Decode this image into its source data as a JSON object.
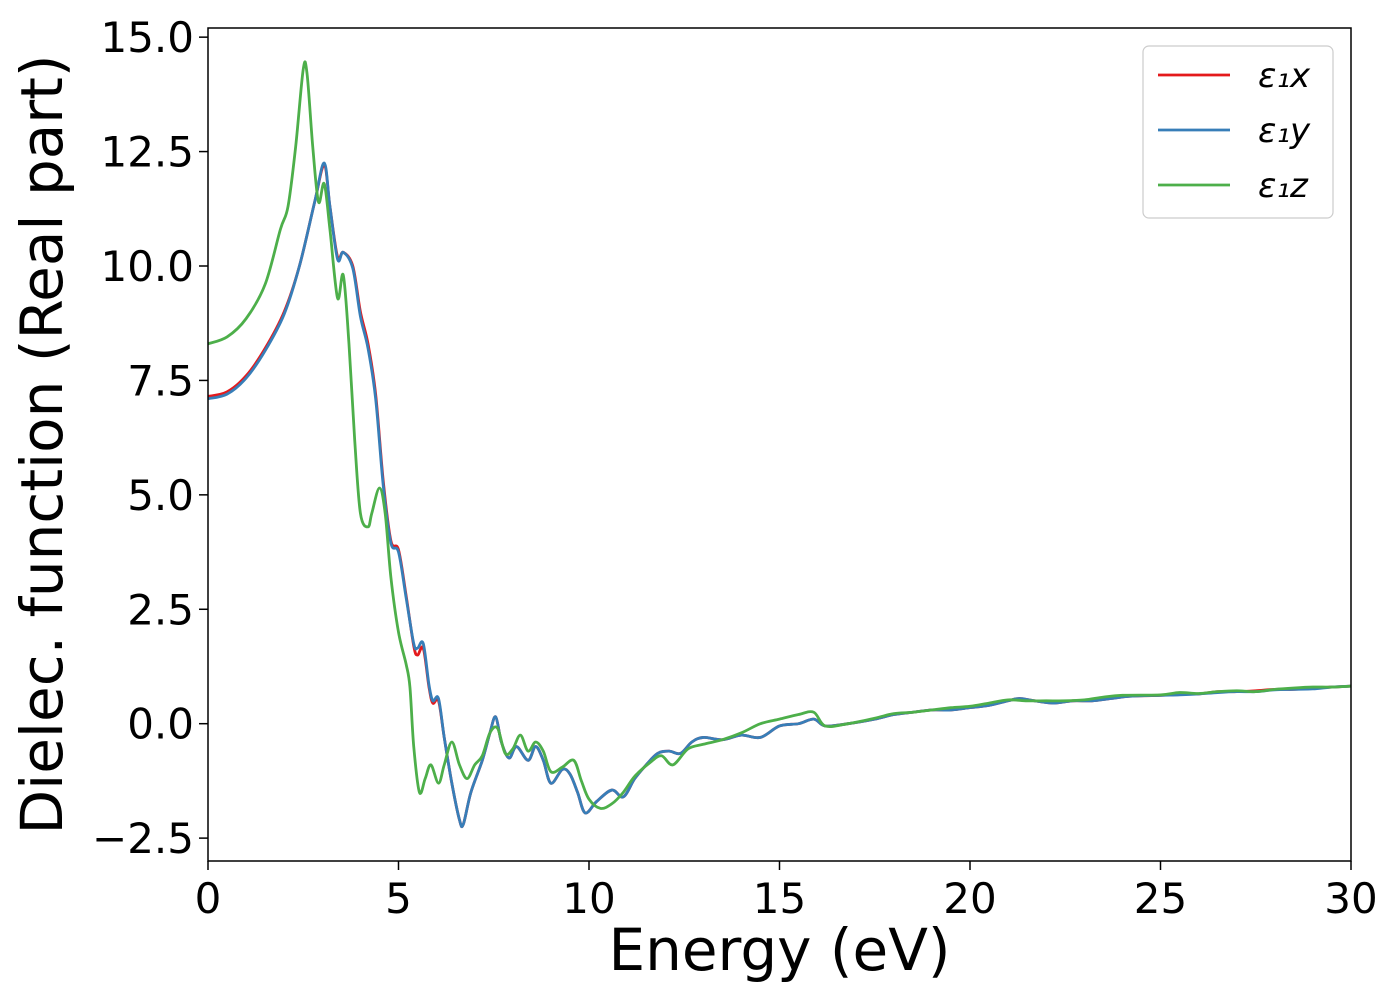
{
  "chart_data": {
    "type": "line",
    "xlabel": "Energy (eV)",
    "ylabel": "Dielec. function (Real part)",
    "xlim": [
      0,
      30
    ],
    "ylim": [
      -3.0,
      15.2
    ],
    "xticks": [
      0,
      5,
      10,
      15,
      20,
      25,
      30
    ],
    "xtick_labels": [
      "0",
      "5",
      "10",
      "15",
      "20",
      "25",
      "30"
    ],
    "yticks": [
      -2.5,
      0.0,
      2.5,
      5.0,
      7.5,
      10.0,
      12.5,
      15.0
    ],
    "ytick_labels": [
      "−2.5",
      "0.0",
      "2.5",
      "5.0",
      "7.5",
      "10.0",
      "12.5",
      "15.0"
    ],
    "grid": false,
    "legend_position": "top-right",
    "series": [
      {
        "name": "ε₁x",
        "color": "#e41a1c",
        "points": [
          [
            0,
            7.15
          ],
          [
            0.5,
            7.25
          ],
          [
            1.0,
            7.6
          ],
          [
            1.5,
            8.2
          ],
          [
            2.0,
            9.0
          ],
          [
            2.4,
            10.0
          ],
          [
            2.8,
            11.4
          ],
          [
            3.05,
            12.2
          ],
          [
            3.2,
            11.3
          ],
          [
            3.4,
            10.2
          ],
          [
            3.55,
            10.3
          ],
          [
            3.8,
            10.0
          ],
          [
            4.0,
            9.0
          ],
          [
            4.2,
            8.3
          ],
          [
            4.4,
            7.2
          ],
          [
            4.6,
            5.3
          ],
          [
            4.8,
            4.0
          ],
          [
            5.0,
            3.8
          ],
          [
            5.2,
            2.8
          ],
          [
            5.4,
            1.7
          ],
          [
            5.5,
            1.5
          ],
          [
            5.65,
            1.65
          ],
          [
            5.8,
            0.8
          ],
          [
            5.9,
            0.45
          ],
          [
            6.05,
            0.5
          ],
          [
            6.2,
            -0.3
          ],
          [
            6.4,
            -1.3
          ],
          [
            6.6,
            -2.1
          ],
          [
            6.7,
            -2.2
          ],
          [
            6.9,
            -1.5
          ],
          [
            7.2,
            -0.8
          ],
          [
            7.4,
            -0.2
          ],
          [
            7.55,
            0.15
          ],
          [
            7.7,
            -0.4
          ],
          [
            7.9,
            -0.75
          ],
          [
            8.1,
            -0.5
          ],
          [
            8.4,
            -0.8
          ],
          [
            8.6,
            -0.5
          ],
          [
            8.8,
            -0.8
          ],
          [
            9.0,
            -1.3
          ],
          [
            9.3,
            -1.0
          ],
          [
            9.5,
            -1.1
          ],
          [
            9.7,
            -1.5
          ],
          [
            9.9,
            -1.95
          ],
          [
            10.2,
            -1.7
          ],
          [
            10.6,
            -1.45
          ],
          [
            10.9,
            -1.6
          ],
          [
            11.2,
            -1.2
          ],
          [
            11.5,
            -0.9
          ],
          [
            11.8,
            -0.65
          ],
          [
            12.1,
            -0.6
          ],
          [
            12.4,
            -0.65
          ],
          [
            12.7,
            -0.4
          ],
          [
            13.0,
            -0.3
          ],
          [
            13.5,
            -0.35
          ],
          [
            14.0,
            -0.25
          ],
          [
            14.5,
            -0.3
          ],
          [
            15.0,
            -0.05
          ],
          [
            15.5,
            0.0
          ],
          [
            15.9,
            0.1
          ],
          [
            16.2,
            -0.05
          ],
          [
            16.8,
            0.0
          ],
          [
            17.5,
            0.1
          ],
          [
            18.0,
            0.2
          ],
          [
            18.5,
            0.25
          ],
          [
            19.0,
            0.3
          ],
          [
            19.5,
            0.3
          ],
          [
            20.0,
            0.35
          ],
          [
            20.5,
            0.4
          ],
          [
            21.0,
            0.5
          ],
          [
            21.3,
            0.55
          ],
          [
            21.7,
            0.5
          ],
          [
            22.2,
            0.45
          ],
          [
            22.7,
            0.5
          ],
          [
            23.2,
            0.5
          ],
          [
            23.7,
            0.55
          ],
          [
            24.2,
            0.6
          ],
          [
            25.0,
            0.62
          ],
          [
            25.5,
            0.65
          ],
          [
            26.0,
            0.65
          ],
          [
            26.5,
            0.7
          ],
          [
            27.0,
            0.7
          ],
          [
            27.5,
            0.72
          ],
          [
            28.0,
            0.75
          ],
          [
            28.5,
            0.75
          ],
          [
            29.0,
            0.78
          ],
          [
            29.5,
            0.8
          ],
          [
            30,
            0.82
          ]
        ]
      },
      {
        "name": "ε₁y",
        "color": "#377eb8",
        "points": [
          [
            0,
            7.1
          ],
          [
            0.5,
            7.2
          ],
          [
            1.0,
            7.55
          ],
          [
            1.5,
            8.15
          ],
          [
            2.0,
            8.95
          ],
          [
            2.4,
            10.0
          ],
          [
            2.8,
            11.4
          ],
          [
            3.05,
            12.25
          ],
          [
            3.2,
            11.3
          ],
          [
            3.4,
            10.15
          ],
          [
            3.55,
            10.3
          ],
          [
            3.8,
            9.95
          ],
          [
            4.0,
            8.9
          ],
          [
            4.2,
            8.2
          ],
          [
            4.4,
            7.1
          ],
          [
            4.6,
            5.2
          ],
          [
            4.8,
            3.95
          ],
          [
            5.0,
            3.75
          ],
          [
            5.2,
            2.75
          ],
          [
            5.4,
            1.75
          ],
          [
            5.5,
            1.65
          ],
          [
            5.65,
            1.75
          ],
          [
            5.8,
            0.85
          ],
          [
            5.9,
            0.5
          ],
          [
            6.05,
            0.55
          ],
          [
            6.2,
            -0.3
          ],
          [
            6.4,
            -1.3
          ],
          [
            6.6,
            -2.1
          ],
          [
            6.7,
            -2.2
          ],
          [
            6.9,
            -1.5
          ],
          [
            7.2,
            -0.8
          ],
          [
            7.4,
            -0.2
          ],
          [
            7.55,
            0.15
          ],
          [
            7.7,
            -0.4
          ],
          [
            7.9,
            -0.75
          ],
          [
            8.1,
            -0.5
          ],
          [
            8.4,
            -0.8
          ],
          [
            8.6,
            -0.5
          ],
          [
            8.8,
            -0.8
          ],
          [
            9.0,
            -1.3
          ],
          [
            9.3,
            -1.0
          ],
          [
            9.5,
            -1.1
          ],
          [
            9.7,
            -1.5
          ],
          [
            9.9,
            -1.95
          ],
          [
            10.2,
            -1.7
          ],
          [
            10.6,
            -1.45
          ],
          [
            10.9,
            -1.6
          ],
          [
            11.2,
            -1.2
          ],
          [
            11.5,
            -0.9
          ],
          [
            11.8,
            -0.65
          ],
          [
            12.1,
            -0.6
          ],
          [
            12.4,
            -0.65
          ],
          [
            12.7,
            -0.4
          ],
          [
            13.0,
            -0.3
          ],
          [
            13.5,
            -0.35
          ],
          [
            14.0,
            -0.25
          ],
          [
            14.5,
            -0.3
          ],
          [
            15.0,
            -0.05
          ],
          [
            15.5,
            0.0
          ],
          [
            15.9,
            0.1
          ],
          [
            16.2,
            -0.05
          ],
          [
            16.8,
            0.0
          ],
          [
            17.5,
            0.1
          ],
          [
            18.0,
            0.2
          ],
          [
            18.5,
            0.25
          ],
          [
            19.0,
            0.3
          ],
          [
            19.5,
            0.3
          ],
          [
            20.0,
            0.35
          ],
          [
            20.5,
            0.4
          ],
          [
            21.0,
            0.5
          ],
          [
            21.3,
            0.55
          ],
          [
            21.7,
            0.5
          ],
          [
            22.2,
            0.45
          ],
          [
            22.7,
            0.5
          ],
          [
            23.2,
            0.5
          ],
          [
            23.7,
            0.55
          ],
          [
            24.2,
            0.6
          ],
          [
            25.0,
            0.62
          ],
          [
            25.5,
            0.63
          ],
          [
            26.0,
            0.65
          ],
          [
            26.5,
            0.68
          ],
          [
            27.0,
            0.7
          ],
          [
            27.5,
            0.7
          ],
          [
            28.0,
            0.74
          ],
          [
            28.5,
            0.75
          ],
          [
            29.0,
            0.76
          ],
          [
            29.5,
            0.8
          ],
          [
            30,
            0.82
          ]
        ]
      },
      {
        "name": "ε₁z",
        "color": "#4daf4a",
        "points": [
          [
            0,
            8.3
          ],
          [
            0.5,
            8.45
          ],
          [
            1.0,
            8.85
          ],
          [
            1.5,
            9.6
          ],
          [
            1.9,
            10.8
          ],
          [
            2.1,
            11.3
          ],
          [
            2.3,
            12.6
          ],
          [
            2.5,
            14.3
          ],
          [
            2.6,
            14.2
          ],
          [
            2.75,
            12.6
          ],
          [
            2.9,
            11.4
          ],
          [
            3.05,
            11.8
          ],
          [
            3.2,
            10.8
          ],
          [
            3.4,
            9.3
          ],
          [
            3.55,
            9.8
          ],
          [
            3.7,
            8.3
          ],
          [
            3.85,
            6.2
          ],
          [
            4.0,
            4.6
          ],
          [
            4.2,
            4.3
          ],
          [
            4.3,
            4.6
          ],
          [
            4.5,
            5.15
          ],
          [
            4.65,
            4.6
          ],
          [
            4.8,
            3.2
          ],
          [
            5.0,
            2.0
          ],
          [
            5.2,
            1.3
          ],
          [
            5.3,
            0.8
          ],
          [
            5.4,
            -0.5
          ],
          [
            5.55,
            -1.5
          ],
          [
            5.7,
            -1.2
          ],
          [
            5.85,
            -0.9
          ],
          [
            6.05,
            -1.3
          ],
          [
            6.2,
            -0.9
          ],
          [
            6.4,
            -0.4
          ],
          [
            6.6,
            -0.9
          ],
          [
            6.8,
            -1.2
          ],
          [
            7.0,
            -0.9
          ],
          [
            7.2,
            -0.7
          ],
          [
            7.4,
            -0.2
          ],
          [
            7.6,
            -0.1
          ],
          [
            7.8,
            -0.65
          ],
          [
            8.0,
            -0.55
          ],
          [
            8.2,
            -0.25
          ],
          [
            8.4,
            -0.6
          ],
          [
            8.6,
            -0.4
          ],
          [
            8.8,
            -0.6
          ],
          [
            9.0,
            -1.05
          ],
          [
            9.3,
            -0.95
          ],
          [
            9.6,
            -0.8
          ],
          [
            9.8,
            -1.25
          ],
          [
            10.0,
            -1.65
          ],
          [
            10.3,
            -1.85
          ],
          [
            10.6,
            -1.75
          ],
          [
            10.9,
            -1.5
          ],
          [
            11.2,
            -1.15
          ],
          [
            11.6,
            -0.85
          ],
          [
            11.9,
            -0.7
          ],
          [
            12.2,
            -0.9
          ],
          [
            12.6,
            -0.55
          ],
          [
            13.0,
            -0.45
          ],
          [
            13.5,
            -0.35
          ],
          [
            14.0,
            -0.2
          ],
          [
            14.5,
            0.0
          ],
          [
            15.0,
            0.1
          ],
          [
            15.5,
            0.2
          ],
          [
            15.9,
            0.25
          ],
          [
            16.2,
            -0.05
          ],
          [
            16.8,
            0.0
          ],
          [
            17.5,
            0.12
          ],
          [
            18.0,
            0.22
          ],
          [
            18.5,
            0.25
          ],
          [
            19.0,
            0.3
          ],
          [
            19.5,
            0.35
          ],
          [
            20.0,
            0.38
          ],
          [
            20.5,
            0.45
          ],
          [
            21.0,
            0.52
          ],
          [
            21.5,
            0.5
          ],
          [
            22.0,
            0.5
          ],
          [
            22.5,
            0.5
          ],
          [
            23.0,
            0.52
          ],
          [
            23.5,
            0.58
          ],
          [
            24.0,
            0.62
          ],
          [
            25.0,
            0.63
          ],
          [
            25.5,
            0.68
          ],
          [
            26.0,
            0.66
          ],
          [
            26.5,
            0.7
          ],
          [
            27.0,
            0.72
          ],
          [
            27.5,
            0.7
          ],
          [
            28.0,
            0.75
          ],
          [
            28.5,
            0.78
          ],
          [
            29.0,
            0.8
          ],
          [
            29.5,
            0.8
          ],
          [
            30,
            0.82
          ]
        ]
      }
    ]
  }
}
